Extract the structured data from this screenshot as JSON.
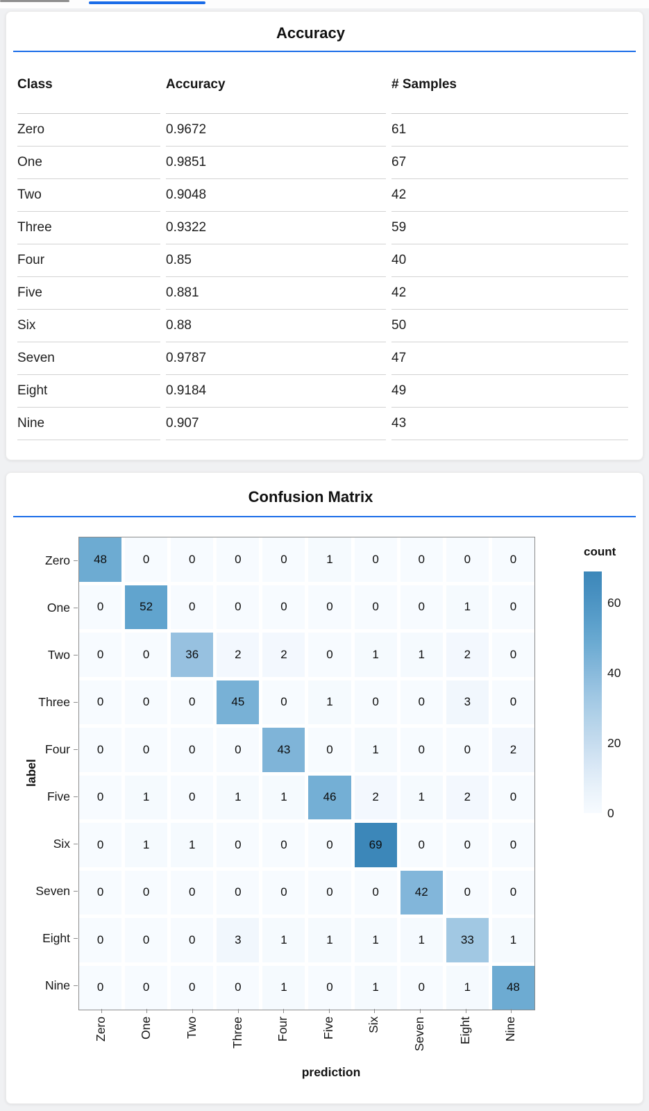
{
  "page": {
    "background": "#f0f1f3",
    "accent": "#1a6ce8",
    "top_tabs": {
      "inactive_color": "#8f8f8f",
      "active_color": "#1a6ce8"
    }
  },
  "accuracy_card": {
    "title": "Accuracy",
    "table": {
      "columns": [
        "Class",
        "Accuracy",
        "# Samples"
      ],
      "rows": [
        [
          "Zero",
          "0.9672",
          "61"
        ],
        [
          "One",
          "0.9851",
          "67"
        ],
        [
          "Two",
          "0.9048",
          "42"
        ],
        [
          "Three",
          "0.9322",
          "59"
        ],
        [
          "Four",
          "0.85",
          "40"
        ],
        [
          "Five",
          "0.881",
          "42"
        ],
        [
          "Six",
          "0.88",
          "50"
        ],
        [
          "Seven",
          "0.9787",
          "47"
        ],
        [
          "Eight",
          "0.9184",
          "49"
        ],
        [
          "Nine",
          "0.907",
          "43"
        ]
      ]
    }
  },
  "confusion_card": {
    "title": "Confusion Matrix"
  },
  "chart_data": [
    {
      "type": "table",
      "title": "Accuracy",
      "columns": [
        "Class",
        "Accuracy",
        "# Samples"
      ],
      "rows": [
        [
          "Zero",
          0.9672,
          61
        ],
        [
          "One",
          0.9851,
          67
        ],
        [
          "Two",
          0.9048,
          42
        ],
        [
          "Three",
          0.9322,
          59
        ],
        [
          "Four",
          0.85,
          40
        ],
        [
          "Five",
          0.881,
          42
        ],
        [
          "Six",
          0.88,
          50
        ],
        [
          "Seven",
          0.9787,
          47
        ],
        [
          "Eight",
          0.9184,
          49
        ],
        [
          "Nine",
          0.907,
          43
        ]
      ]
    },
    {
      "type": "heatmap",
      "title": "Confusion Matrix",
      "xlabel": "prediction",
      "ylabel": "label",
      "x_labels": [
        "Zero",
        "One",
        "Two",
        "Three",
        "Four",
        "Five",
        "Six",
        "Seven",
        "Eight",
        "Nine"
      ],
      "y_labels": [
        "Zero",
        "One",
        "Two",
        "Three",
        "Four",
        "Five",
        "Six",
        "Seven",
        "Eight",
        "Nine"
      ],
      "legend_title": "count",
      "legend_position": "right",
      "legend_ticks": [
        0,
        20,
        40,
        60
      ],
      "color_domain": [
        0,
        69
      ],
      "color_scheme": "blues",
      "grid": false,
      "matrix": [
        [
          48,
          0,
          0,
          0,
          0,
          1,
          0,
          0,
          0,
          0
        ],
        [
          0,
          52,
          0,
          0,
          0,
          0,
          0,
          0,
          1,
          0
        ],
        [
          0,
          0,
          36,
          2,
          2,
          0,
          1,
          1,
          2,
          0
        ],
        [
          0,
          0,
          0,
          45,
          0,
          1,
          0,
          0,
          3,
          0
        ],
        [
          0,
          0,
          0,
          0,
          43,
          0,
          1,
          0,
          0,
          2
        ],
        [
          0,
          1,
          0,
          1,
          1,
          46,
          2,
          1,
          2,
          0
        ],
        [
          0,
          1,
          1,
          0,
          0,
          0,
          69,
          0,
          0,
          0
        ],
        [
          0,
          0,
          0,
          0,
          0,
          0,
          0,
          42,
          0,
          0
        ],
        [
          0,
          0,
          0,
          3,
          1,
          1,
          1,
          1,
          33,
          1
        ],
        [
          0,
          0,
          0,
          0,
          1,
          0,
          1,
          0,
          1,
          48
        ]
      ]
    }
  ]
}
